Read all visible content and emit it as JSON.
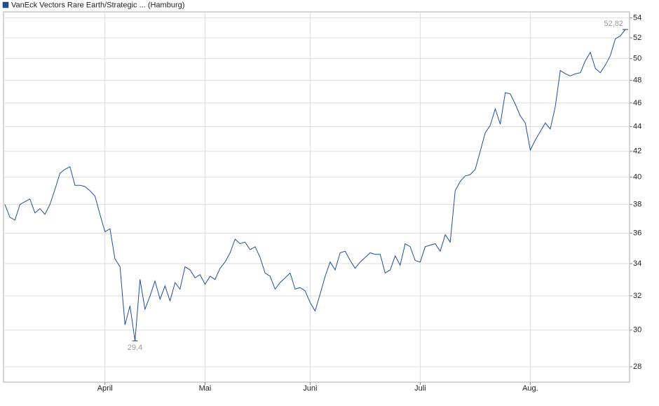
{
  "chart_data": {
    "type": "line",
    "log_scale": true,
    "grid": true,
    "legend": "top-left",
    "categories": [
      null,
      null,
      null,
      null,
      null,
      null,
      null,
      null,
      null,
      null,
      null,
      null,
      null,
      null,
      null,
      null,
      null,
      null,
      null,
      null,
      "April",
      null,
      null,
      null,
      null,
      null,
      null,
      null,
      null,
      null,
      null,
      null,
      null,
      null,
      null,
      null,
      null,
      null,
      null,
      null,
      "Mai",
      null,
      null,
      null,
      null,
      null,
      null,
      null,
      null,
      null,
      null,
      null,
      null,
      null,
      null,
      null,
      null,
      null,
      null,
      null,
      null,
      "Juni",
      null,
      null,
      null,
      null,
      null,
      null,
      null,
      null,
      null,
      null,
      null,
      null,
      null,
      null,
      null,
      null,
      null,
      null,
      null,
      null,
      null,
      "Juli",
      null,
      null,
      null,
      null,
      null,
      null,
      null,
      null,
      null,
      null,
      null,
      null,
      null,
      null,
      null,
      null,
      null,
      null,
      null,
      null,
      null,
      "Aug.",
      null,
      null,
      null,
      null,
      null,
      null,
      null,
      null,
      null,
      null,
      null,
      null,
      null,
      null,
      null,
      null,
      null,
      null,
      null
    ],
    "series": [
      {
        "name": "VanEck Vectors Rare Earth/Strategic ... (Hamburg)",
        "color": "#1f4e9c",
        "values": [
          38,
          37.1,
          36.9,
          38,
          38.2,
          38.4,
          37.4,
          37.7,
          37.3,
          38,
          39.1,
          40.3,
          40.6,
          40.8,
          39.4,
          39.4,
          39.3,
          39,
          38.6,
          37.3,
          36.1,
          36.3,
          34.3,
          33.8,
          30.3,
          31.4,
          29.4,
          33,
          31.2,
          32,
          32.9,
          31.8,
          32.6,
          31.7,
          32.8,
          32.4,
          33.8,
          33.6,
          33.1,
          33.3,
          32.7,
          33.2,
          33,
          33.7,
          34.1,
          34.7,
          35.6,
          35.3,
          35.4,
          34.9,
          35.1,
          34.4,
          33.4,
          33.2,
          32.4,
          32.8,
          33.1,
          33.4,
          32.4,
          32.5,
          32.3,
          31.6,
          31.1,
          32.1,
          33.2,
          34.1,
          33.6,
          34.7,
          34.8,
          34.2,
          33.7,
          34.1,
          34.4,
          34.7,
          34.6,
          34.6,
          33.4,
          33.6,
          34.5,
          33.9,
          35.3,
          35.1,
          34.2,
          34.1,
          35.1,
          35.2,
          35.3,
          34.8,
          35.9,
          35.4,
          39,
          39.7,
          40.1,
          40.2,
          40.6,
          42,
          43.5,
          44.1,
          45.5,
          44.2,
          46.9,
          46.8,
          45.9,
          44.9,
          44.3,
          42.1,
          42.9,
          43.6,
          44.3,
          43.8,
          45.7,
          48.9,
          48.6,
          48.4,
          48.6,
          48.7,
          49.8,
          50.6,
          49.1,
          48.7,
          49.4,
          50.3,
          51.9,
          52.2,
          52.82
        ],
        "value_labels": [
          null,
          null,
          null,
          null,
          null,
          null,
          null,
          null,
          null,
          null,
          null,
          null,
          null,
          null,
          null,
          null,
          null,
          null,
          null,
          null,
          null,
          null,
          null,
          null,
          null,
          null,
          "29,4",
          null,
          null,
          null,
          null,
          null,
          null,
          null,
          null,
          null,
          null,
          null,
          null,
          null,
          null,
          null,
          null,
          null,
          null,
          null,
          null,
          null,
          null,
          null,
          null,
          null,
          null,
          null,
          null,
          null,
          null,
          null,
          null,
          null,
          null,
          null,
          null,
          null,
          null,
          null,
          null,
          null,
          null,
          null,
          null,
          null,
          null,
          null,
          null,
          null,
          null,
          null,
          null,
          null,
          null,
          null,
          null,
          null,
          null,
          null,
          null,
          null,
          null,
          null,
          null,
          null,
          null,
          null,
          null,
          null,
          null,
          null,
          null,
          null,
          null,
          null,
          null,
          null,
          null,
          null,
          null,
          null,
          null,
          null,
          null,
          null,
          null,
          null,
          null,
          null,
          null,
          null,
          null,
          null,
          null,
          null,
          null,
          null,
          "52,82"
        ]
      }
    ],
    "ylim": [
      27.2,
      54.6
    ],
    "yticks": [
      28,
      30,
      32,
      34,
      36,
      38,
      40,
      42,
      44,
      46,
      48,
      50,
      52,
      54
    ]
  }
}
